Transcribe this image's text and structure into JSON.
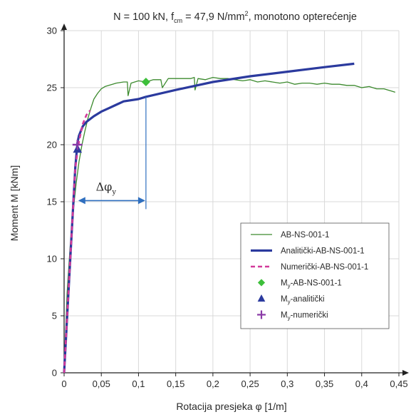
{
  "chart_data": {
    "type": "line",
    "title_parts": {
      "pre": "N = 100 kN, f",
      "sub": "cm",
      "mid": " = 47,9 N/mm",
      "sup": "2",
      "post": ", monotono opterećenje"
    },
    "xlabel": "Rotacija presjeka φ [1/m]",
    "ylabel": "Moment M [kNm]",
    "xlim": [
      0,
      0.45
    ],
    "ylim": [
      0,
      30
    ],
    "xticks": [
      0,
      0.05,
      0.1,
      0.15,
      0.2,
      0.25,
      0.3,
      0.35,
      0.4,
      0.45
    ],
    "xtick_labels": [
      "0",
      "0,05",
      "0,1",
      "0,15",
      "0,2",
      "0,25",
      "0,3",
      "0,35",
      "0,4",
      "0,45"
    ],
    "yticks": [
      0,
      5,
      10,
      15,
      20,
      25,
      30
    ],
    "ytick_labels": [
      "0",
      "5",
      "10",
      "15",
      "20",
      "25",
      "30"
    ],
    "legend_position": "bottom-right",
    "series": [
      {
        "name": "AB-NS-001-1",
        "style": "line",
        "color": "#3c8a2e",
        "x": [
          0,
          0.004,
          0.008,
          0.012,
          0.016,
          0.02,
          0.024,
          0.028,
          0.032,
          0.036,
          0.04,
          0.045,
          0.05,
          0.055,
          0.06,
          0.065,
          0.07,
          0.08,
          0.085,
          0.086,
          0.09,
          0.1,
          0.11,
          0.12,
          0.13,
          0.132,
          0.14,
          0.15,
          0.16,
          0.17,
          0.175,
          0.176,
          0.18,
          0.19,
          0.2,
          0.21,
          0.22,
          0.23,
          0.24,
          0.25,
          0.26,
          0.27,
          0.28,
          0.29,
          0.3,
          0.31,
          0.32,
          0.33,
          0.34,
          0.35,
          0.36,
          0.37,
          0.38,
          0.39,
          0.4,
          0.41,
          0.42,
          0.43,
          0.44,
          0.445
        ],
        "y": [
          0,
          7,
          11,
          14,
          16.5,
          18.5,
          20,
          21.2,
          22.3,
          23.2,
          24,
          24.5,
          24.9,
          25.1,
          25.2,
          25.3,
          25.4,
          25.5,
          25.5,
          24.3,
          25.4,
          25.6,
          25.5,
          25.7,
          25.7,
          25,
          25.8,
          25.8,
          25.8,
          25.8,
          25.9,
          24.8,
          25.8,
          25.7,
          25.9,
          25.8,
          25.8,
          25.7,
          25.6,
          25.7,
          25.5,
          25.6,
          25.5,
          25.4,
          25.5,
          25.3,
          25.4,
          25.4,
          25.3,
          25.4,
          25.3,
          25.3,
          25.2,
          25.2,
          25,
          25.1,
          24.9,
          24.9,
          24.7,
          24.6
        ]
      },
      {
        "name": "Analitički-AB-NS-001-1",
        "style": "line",
        "color": "#2b3a9e",
        "x": [
          0,
          0.005,
          0.01,
          0.015,
          0.018,
          0.02,
          0.025,
          0.03,
          0.04,
          0.05,
          0.06,
          0.07,
          0.08,
          0.1,
          0.11,
          0.15,
          0.2,
          0.25,
          0.3,
          0.35,
          0.39
        ],
        "y": [
          0,
          6,
          12,
          18,
          20.2,
          20.8,
          21.6,
          22,
          22.5,
          22.9,
          23.2,
          23.5,
          23.8,
          24,
          24.2,
          24.8,
          25.5,
          26,
          26.4,
          26.8,
          27.1
        ]
      },
      {
        "name": "Numerički-AB-NS-001-1",
        "style": "dashed",
        "color": "#d23a9a",
        "x": [
          0,
          0.005,
          0.01,
          0.015,
          0.02,
          0.025,
          0.03,
          0.035
        ],
        "y": [
          0,
          6,
          12,
          18,
          20.3,
          21.8,
          22.6,
          23
        ]
      },
      {
        "name": "M_y-AB-NS-001-1",
        "style": "marker",
        "marker": "diamond",
        "color": "#3dbf3a",
        "x": [
          0.11
        ],
        "y": [
          25.5
        ]
      },
      {
        "name": "M_y-analitički",
        "style": "marker",
        "marker": "triangle",
        "color": "#2b3a9e",
        "x": [
          0.018
        ],
        "y": [
          19.6
        ]
      },
      {
        "name": "M_y-numerički",
        "style": "marker",
        "marker": "plus",
        "color": "#8a3aa6",
        "x": [
          0.018
        ],
        "y": [
          20
        ]
      }
    ],
    "legend": [
      {
        "pre": "AB-NS-001-1",
        "sub": "",
        "post": ""
      },
      {
        "pre": "Analitički-AB-NS-001-1",
        "sub": "",
        "post": ""
      },
      {
        "pre": "Numerički-AB-NS-001-1",
        "sub": "",
        "post": ""
      },
      {
        "pre": "M",
        "sub": "y",
        "post": "-AB-NS-001-1"
      },
      {
        "pre": "M",
        "sub": "y",
        "post": "-analitički"
      },
      {
        "pre": "M",
        "sub": "y",
        "post": "-numerički"
      }
    ],
    "annotation": {
      "text": "Δφ",
      "sub": "y",
      "x_from": 0.018,
      "x_to": 0.11,
      "y_level": 15.1,
      "color": "#2f6fbf"
    }
  }
}
